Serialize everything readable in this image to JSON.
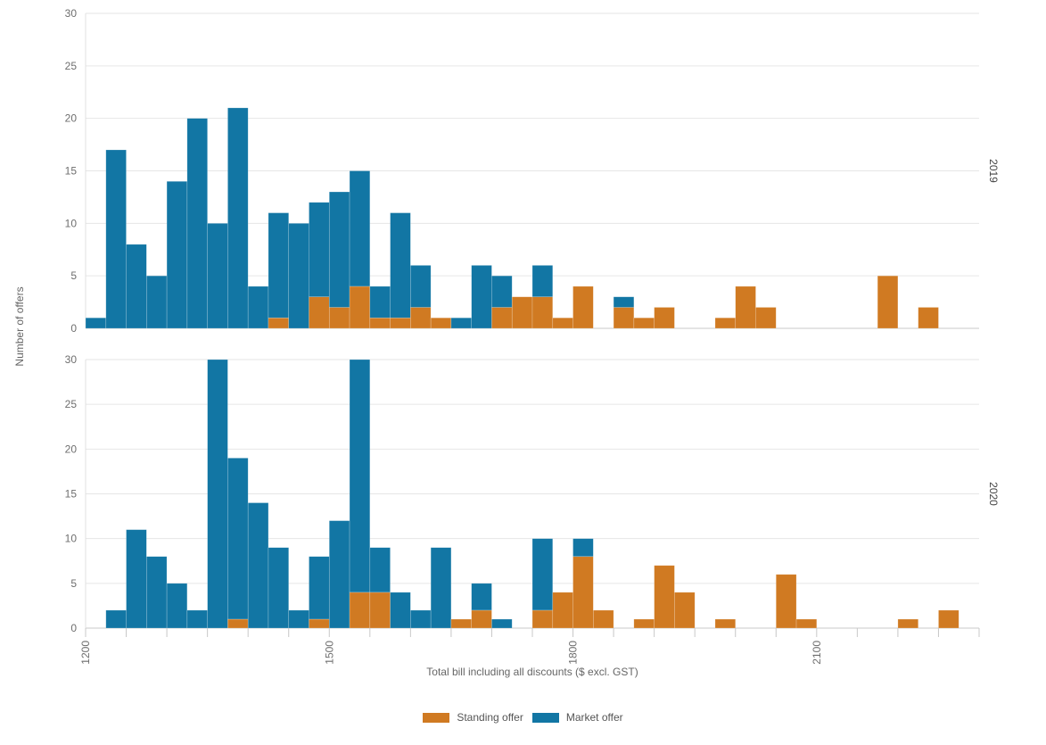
{
  "chart_data": {
    "type": "bar",
    "stacked": true,
    "xlabel": "Total bill including all discounts ($ excl. GST)",
    "ylabel": "Number of offers",
    "x_ticks": [
      "1200",
      "1500",
      "1800",
      "2100"
    ],
    "x_tick_values": [
      1200,
      1500,
      1800,
      2100
    ],
    "xlim": [
      1200,
      2300
    ],
    "bin_width": 25,
    "colors": {
      "standing": "#d07a22",
      "market": "#1276a4"
    },
    "legend": [
      {
        "key": "standing",
        "label": "Standing offer"
      },
      {
        "key": "market",
        "label": "Market offer"
      }
    ],
    "legend_placement": "bottom",
    "grid": true,
    "panels": [
      {
        "label": "2019",
        "ylim": [
          0,
          30
        ],
        "y_ticks": [
          "0",
          "5",
          "10",
          "15",
          "20",
          "25",
          "30"
        ],
        "bins": [
          {
            "x": 1200,
            "standing": 0,
            "total": 1
          },
          {
            "x": 1225,
            "standing": 0,
            "total": 17
          },
          {
            "x": 1250,
            "standing": 0,
            "total": 8
          },
          {
            "x": 1275,
            "standing": 0,
            "total": 5
          },
          {
            "x": 1300,
            "standing": 0,
            "total": 14
          },
          {
            "x": 1325,
            "standing": 0,
            "total": 20
          },
          {
            "x": 1350,
            "standing": 0,
            "total": 10
          },
          {
            "x": 1375,
            "standing": 0,
            "total": 21
          },
          {
            "x": 1400,
            "standing": 0,
            "total": 4
          },
          {
            "x": 1425,
            "standing": 1,
            "total": 11
          },
          {
            "x": 1450,
            "standing": 0,
            "total": 10
          },
          {
            "x": 1475,
            "standing": 3,
            "total": 12
          },
          {
            "x": 1500,
            "standing": 2,
            "total": 13
          },
          {
            "x": 1525,
            "standing": 4,
            "total": 15
          },
          {
            "x": 1550,
            "standing": 1,
            "total": 4
          },
          {
            "x": 1575,
            "standing": 1,
            "total": 11
          },
          {
            "x": 1600,
            "standing": 2,
            "total": 6
          },
          {
            "x": 1625,
            "standing": 1,
            "total": 1
          },
          {
            "x": 1650,
            "standing": 0,
            "total": 1
          },
          {
            "x": 1675,
            "standing": 0,
            "total": 6
          },
          {
            "x": 1700,
            "standing": 2,
            "total": 5
          },
          {
            "x": 1725,
            "standing": 3,
            "total": 3
          },
          {
            "x": 1750,
            "standing": 3,
            "total": 6
          },
          {
            "x": 1775,
            "standing": 1,
            "total": 1
          },
          {
            "x": 1800,
            "standing": 4,
            "total": 4
          },
          {
            "x": 1850,
            "standing": 2,
            "total": 3
          },
          {
            "x": 1875,
            "standing": 1,
            "total": 1
          },
          {
            "x": 1900,
            "standing": 2,
            "total": 2
          },
          {
            "x": 1975,
            "standing": 1,
            "total": 1
          },
          {
            "x": 2000,
            "standing": 4,
            "total": 4
          },
          {
            "x": 2025,
            "standing": 2,
            "total": 2
          },
          {
            "x": 2175,
            "standing": 5,
            "total": 5
          },
          {
            "x": 2225,
            "standing": 2,
            "total": 2
          }
        ]
      },
      {
        "label": "2020",
        "ylim": [
          0,
          30
        ],
        "y_ticks": [
          "0",
          "5",
          "10",
          "15",
          "20",
          "25",
          "30"
        ],
        "bins": [
          {
            "x": 1225,
            "standing": 0,
            "total": 2
          },
          {
            "x": 1250,
            "standing": 0,
            "total": 11
          },
          {
            "x": 1275,
            "standing": 0,
            "total": 8
          },
          {
            "x": 1300,
            "standing": 0,
            "total": 5
          },
          {
            "x": 1325,
            "standing": 0,
            "total": 2
          },
          {
            "x": 1350,
            "standing": 0,
            "total": 30
          },
          {
            "x": 1375,
            "standing": 1,
            "total": 19
          },
          {
            "x": 1400,
            "standing": 0,
            "total": 14
          },
          {
            "x": 1425,
            "standing": 0,
            "total": 9
          },
          {
            "x": 1450,
            "standing": 0,
            "total": 2
          },
          {
            "x": 1475,
            "standing": 1,
            "total": 8
          },
          {
            "x": 1500,
            "standing": 0,
            "total": 12
          },
          {
            "x": 1525,
            "standing": 4,
            "total": 30
          },
          {
            "x": 1550,
            "standing": 4,
            "total": 9
          },
          {
            "x": 1575,
            "standing": 0,
            "total": 4
          },
          {
            "x": 1600,
            "standing": 0,
            "total": 2
          },
          {
            "x": 1625,
            "standing": 0,
            "total": 9
          },
          {
            "x": 1650,
            "standing": 1,
            "total": 1
          },
          {
            "x": 1675,
            "standing": 2,
            "total": 5
          },
          {
            "x": 1700,
            "standing": 0,
            "total": 1
          },
          {
            "x": 1750,
            "standing": 2,
            "total": 10
          },
          {
            "x": 1775,
            "standing": 4,
            "total": 4
          },
          {
            "x": 1800,
            "standing": 8,
            "total": 10
          },
          {
            "x": 1825,
            "standing": 2,
            "total": 2
          },
          {
            "x": 1875,
            "standing": 1,
            "total": 1
          },
          {
            "x": 1900,
            "standing": 7,
            "total": 7
          },
          {
            "x": 1925,
            "standing": 4,
            "total": 4
          },
          {
            "x": 1975,
            "standing": 1,
            "total": 1
          },
          {
            "x": 2050,
            "standing": 6,
            "total": 6
          },
          {
            "x": 2075,
            "standing": 1,
            "total": 1
          },
          {
            "x": 2200,
            "standing": 1,
            "total": 1
          },
          {
            "x": 2250,
            "standing": 2,
            "total": 2
          }
        ]
      }
    ]
  }
}
